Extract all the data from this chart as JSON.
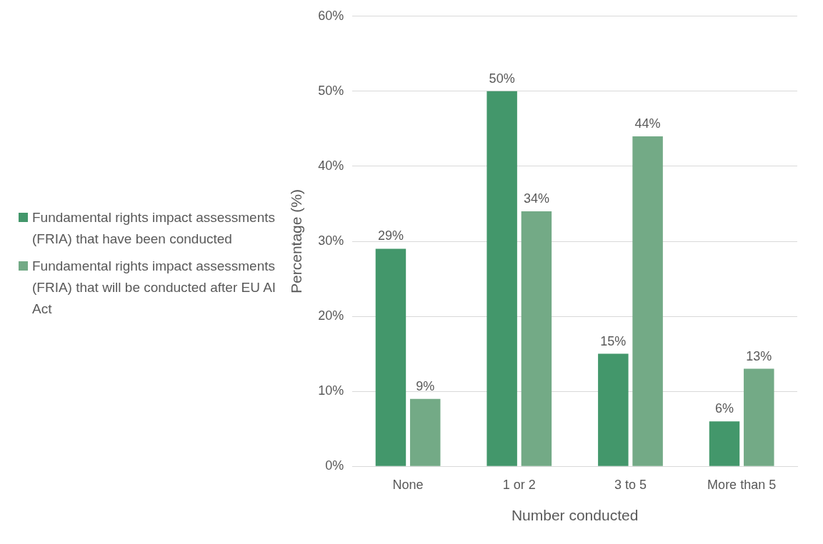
{
  "chart_data": {
    "type": "bar",
    "xlabel": "Number conducted",
    "ylabel": "Percentage (%)",
    "categories": [
      "None",
      "1 or 2",
      "3 to 5",
      "More than 5"
    ],
    "series": [
      {
        "name": "Fundamental rights impact assessments (FRIA) that have been conducted",
        "color": "#43976b",
        "values": [
          29,
          50,
          15,
          6
        ],
        "value_labels": [
          "29%",
          "50%",
          "15%",
          "6%"
        ]
      },
      {
        "name": "Fundamental rights impact assessments (FRIA) that will be conducted after EU AI Act",
        "color": "#73aa86",
        "values": [
          9,
          34,
          44,
          13
        ],
        "value_labels": [
          "9%",
          "34%",
          "44%",
          "13%"
        ]
      }
    ],
    "ylim": [
      0,
      60
    ],
    "yticks": [
      {
        "value": 0,
        "label": "0%"
      },
      {
        "value": 10,
        "label": "10%"
      },
      {
        "value": 20,
        "label": "20%"
      },
      {
        "value": 30,
        "label": "30%"
      },
      {
        "value": 40,
        "label": "40%"
      },
      {
        "value": 50,
        "label": "50%"
      },
      {
        "value": 60,
        "label": "60%"
      }
    ],
    "grid": "y",
    "legend": "left"
  }
}
